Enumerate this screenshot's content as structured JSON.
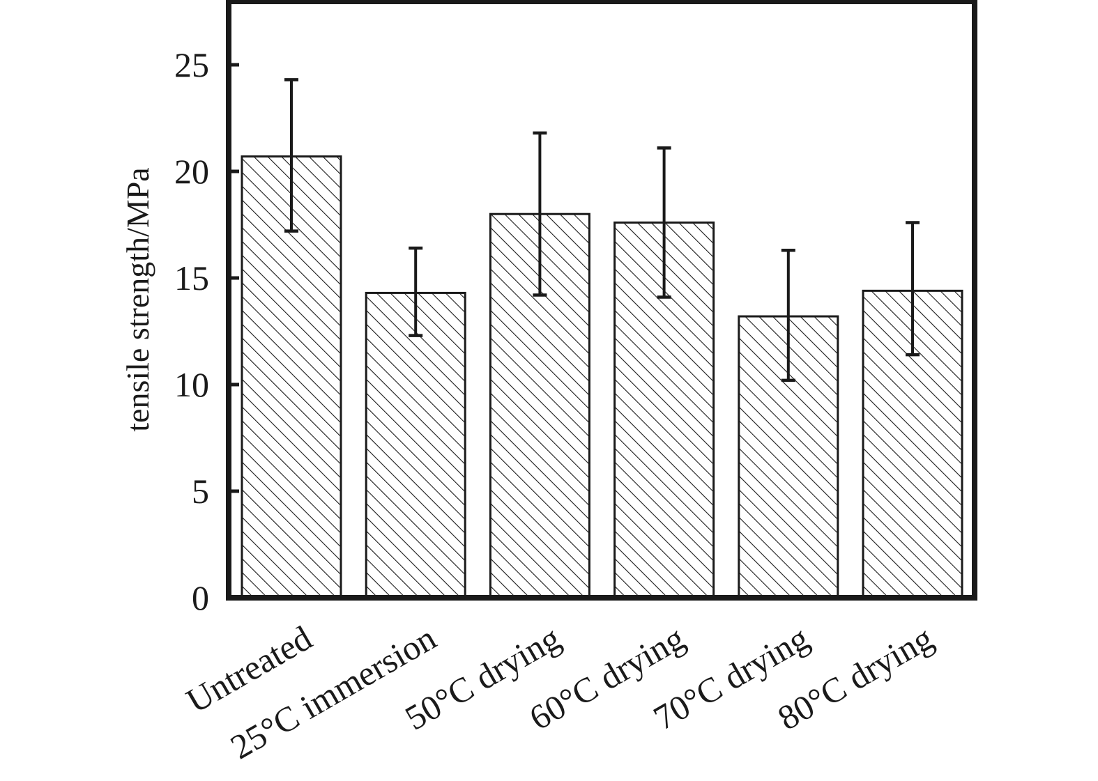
{
  "chart_data": {
    "type": "bar",
    "title": "",
    "xlabel": "",
    "ylabel": "tensile strength/MPa",
    "ylim": [
      0,
      28
    ],
    "yticks": [
      0,
      5,
      10,
      15,
      20,
      25
    ],
    "grid": false,
    "legend": "none",
    "categories": [
      "Untreated",
      "25°C immersion",
      "50°C drying",
      "60°C drying",
      "70°C drying",
      "80°C drying"
    ],
    "series": [
      {
        "values": [
          20.7,
          14.3,
          18.0,
          17.6,
          13.2,
          14.4
        ],
        "error_low": [
          17.2,
          12.3,
          14.2,
          14.1,
          10.2,
          11.4
        ],
        "error_high": [
          24.3,
          16.4,
          21.8,
          21.1,
          16.3,
          17.6
        ]
      }
    ],
    "colors": {
      "bar_fill": "#ffffff",
      "hatch": "#1a1a1a",
      "axis": "#1a1a1a"
    }
  }
}
